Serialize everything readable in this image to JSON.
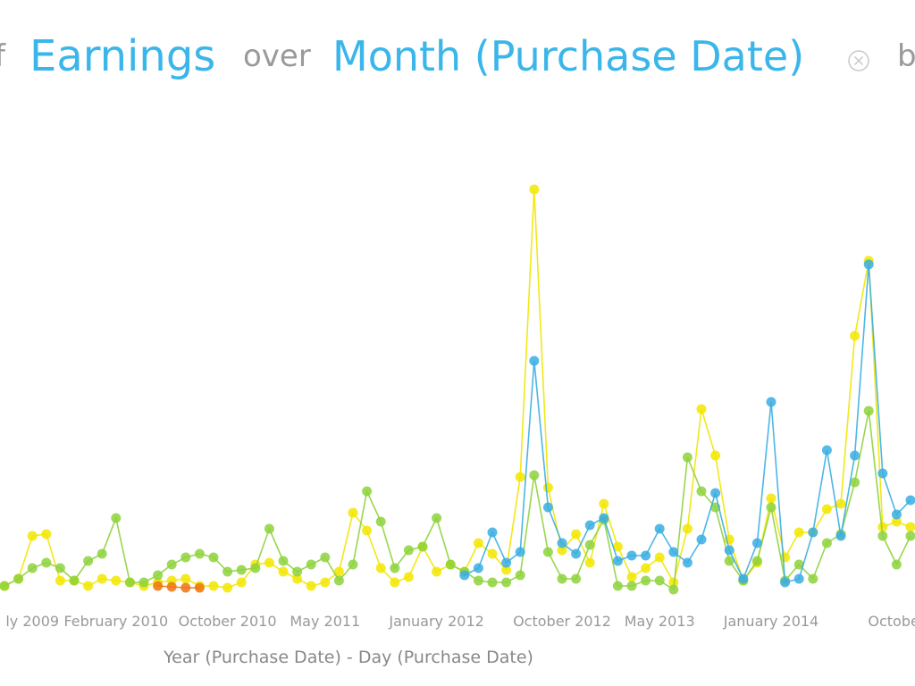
{
  "header": {
    "parts": [
      "f",
      "Earnings",
      "over",
      "Month (Purchase Date)",
      "b"
    ]
  },
  "chart_data": {
    "type": "line",
    "x_label": "Year (Purchase Date) - Day (Purchase Date)",
    "categories": [
      null,
      null,
      "ly 2009",
      null,
      null,
      null,
      null,
      null,
      "February 2010",
      null,
      null,
      null,
      null,
      null,
      null,
      null,
      "October 2010",
      null,
      null,
      null,
      null,
      null,
      null,
      "May 2011",
      null,
      null,
      null,
      null,
      null,
      null,
      null,
      "January 2012",
      null,
      null,
      null,
      null,
      null,
      null,
      null,
      null,
      "October 2012",
      null,
      null,
      null,
      null,
      null,
      null,
      "May 2013",
      null,
      null,
      null,
      null,
      null,
      null,
      null,
      "January 2014",
      null,
      null,
      null,
      null,
      null,
      null,
      null,
      null,
      "October",
      null
    ],
    "ylim": [
      0,
      120
    ],
    "series": [
      {
        "color": "#f2e600",
        "values": [
          3,
          5,
          17,
          17.5,
          4.5,
          4.5,
          3,
          5,
          4.5,
          4,
          3,
          4,
          4.5,
          5,
          3,
          3,
          2.5,
          4,
          9,
          9.5,
          7,
          5,
          3,
          4,
          7,
          23.5,
          18.5,
          8,
          4,
          5.5,
          14,
          7,
          9,
          7,
          15,
          12,
          7.5,
          33.5,
          114,
          30.5,
          13,
          17.5,
          9.5,
          26,
          14,
          5.5,
          8,
          11,
          4,
          19,
          52.5,
          39.5,
          16,
          4.5,
          9.5,
          27.5,
          11,
          18,
          18,
          24.5,
          26,
          73,
          94,
          19.5,
          21,
          19.5
        ]
      },
      {
        "color": "#8ed23c",
        "values": [
          3,
          5,
          8,
          9.5,
          8,
          4.5,
          10,
          12,
          22,
          4,
          4,
          6,
          9,
          11,
          12,
          11,
          7,
          7.5,
          8,
          19,
          10,
          7,
          9,
          11,
          4.5,
          9,
          29.5,
          21,
          8,
          13,
          14,
          22,
          9,
          7,
          4.5,
          4,
          4,
          6,
          34,
          12.5,
          5,
          5,
          14.5,
          21.5,
          3,
          3,
          4.5,
          4.5,
          2,
          39,
          29.5,
          25,
          10,
          4.5,
          10,
          25,
          4.5,
          9,
          5,
          15,
          17.5,
          32,
          52,
          17,
          9,
          17
        ]
      },
      {
        "color": "#3aaee2",
        "values": [
          null,
          null,
          null,
          null,
          null,
          null,
          null,
          null,
          null,
          null,
          null,
          null,
          null,
          null,
          null,
          null,
          null,
          null,
          null,
          null,
          null,
          null,
          null,
          null,
          null,
          null,
          null,
          null,
          null,
          null,
          null,
          null,
          null,
          6,
          8,
          18,
          9.5,
          12.5,
          66,
          25,
          15,
          12,
          20,
          22,
          10,
          11.5,
          11.5,
          19,
          12.5,
          9.5,
          16,
          29,
          13,
          5,
          15,
          54.5,
          4,
          5,
          18,
          41,
          17,
          39.5,
          93,
          34.5,
          23,
          27
        ]
      },
      {
        "color": "#ee7410",
        "values": [
          null,
          null,
          null,
          null,
          null,
          null,
          null,
          null,
          null,
          null,
          null,
          3,
          2.75,
          2.5,
          2.5,
          null,
          null,
          null,
          null,
          null,
          null,
          null,
          null,
          null,
          null,
          null,
          null,
          null,
          null,
          null,
          null,
          null,
          null,
          null,
          null,
          null,
          null,
          null,
          null,
          null,
          null,
          null,
          null,
          null,
          null,
          null,
          null,
          null,
          null,
          null,
          null,
          null,
          null,
          null,
          null,
          null,
          null,
          null,
          null,
          null,
          null,
          null,
          null,
          null,
          null,
          null
        ]
      }
    ]
  }
}
